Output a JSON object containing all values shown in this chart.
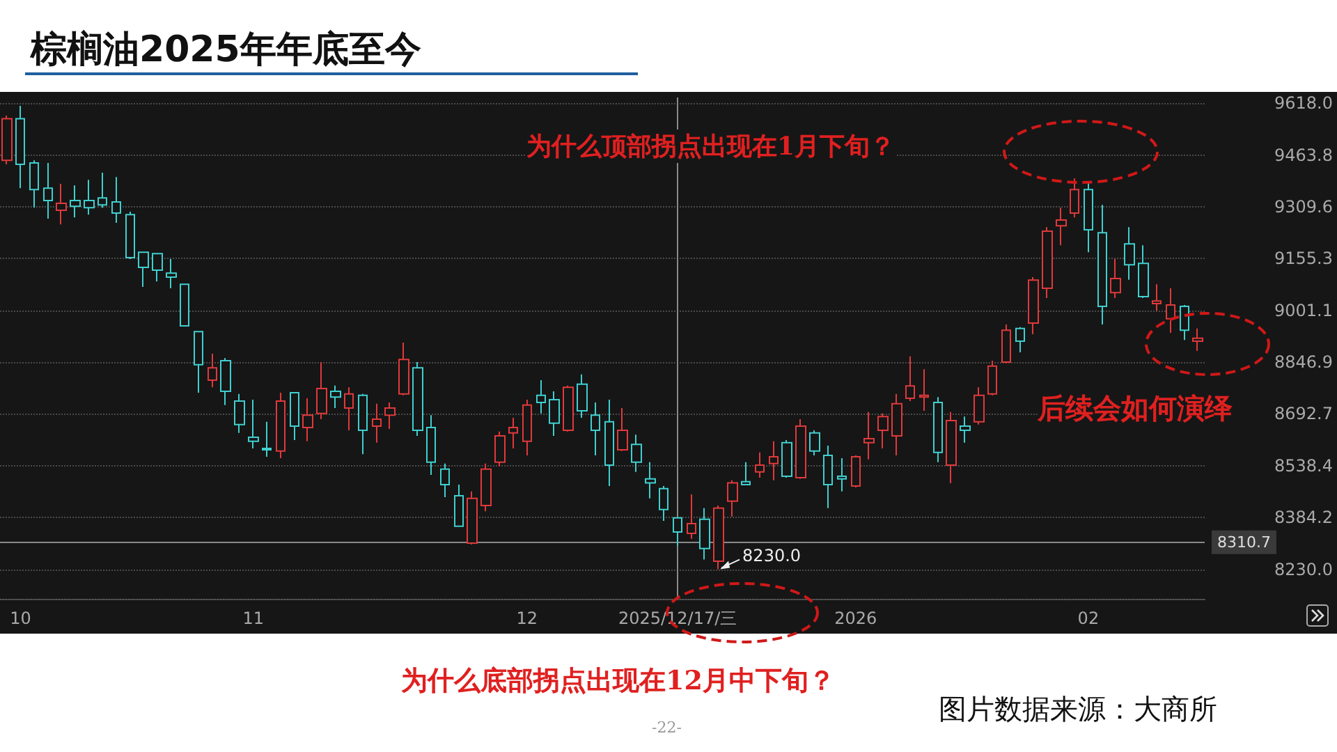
{
  "chart_data": {
    "type": "candlestick",
    "title": "棕榈油2025年年底至今",
    "categories": [
      null,
      "10",
      null,
      null,
      null,
      null,
      null,
      null,
      null,
      null,
      null,
      null,
      null,
      null,
      null,
      null,
      null,
      null,
      "11",
      null,
      null,
      null,
      null,
      null,
      null,
      null,
      null,
      null,
      null,
      null,
      null,
      null,
      null,
      null,
      null,
      null,
      null,
      null,
      "12",
      null,
      null,
      null,
      null,
      null,
      null,
      null,
      null,
      null,
      null,
      "2025/12/17/三",
      null,
      null,
      null,
      null,
      null,
      null,
      null,
      null,
      null,
      null,
      null,
      null,
      "2026",
      null,
      null,
      null,
      null,
      null,
      null,
      null,
      null,
      null,
      null,
      null,
      null,
      null,
      null,
      null,
      null,
      "02",
      null,
      null,
      null,
      null,
      null,
      null,
      null,
      null
    ],
    "ohlc": [
      [
        9448,
        9581,
        9436,
        9572
      ],
      [
        9572,
        9610,
        9365,
        9436
      ],
      [
        9440,
        9448,
        9307,
        9361
      ],
      [
        9365,
        9440,
        9274,
        9328
      ],
      [
        9299,
        9378,
        9257,
        9320
      ],
      [
        9328,
        9373,
        9278,
        9311
      ],
      [
        9328,
        9390,
        9286,
        9307
      ],
      [
        9336,
        9411,
        9307,
        9315
      ],
      [
        9324,
        9398,
        9262,
        9291
      ],
      [
        9286,
        9295,
        9154,
        9158
      ],
      [
        9174,
        9174,
        9071,
        9129
      ],
      [
        9170,
        9170,
        9087,
        9121
      ],
      [
        9112,
        9154,
        9067,
        9100
      ],
      [
        9079,
        9079,
        8955,
        8955
      ],
      [
        8938,
        8938,
        8756,
        8839
      ],
      [
        8793,
        8872,
        8772,
        8830
      ],
      [
        8851,
        8859,
        8719,
        8760
      ],
      [
        8731,
        8752,
        8636,
        8661
      ],
      [
        8623,
        8735,
        8590,
        8611
      ],
      [
        8590,
        8669,
        8565,
        8586
      ],
      [
        8582,
        8756,
        8561,
        8731
      ],
      [
        8756,
        8756,
        8615,
        8656
      ],
      [
        8652,
        8739,
        8611,
        8689
      ],
      [
        8694,
        8847,
        8677,
        8768
      ],
      [
        8760,
        8777,
        8710,
        8743
      ],
      [
        8710,
        8772,
        8644,
        8752
      ],
      [
        8748,
        8752,
        8573,
        8644
      ],
      [
        8656,
        8723,
        8607,
        8677
      ],
      [
        8689,
        8727,
        8648,
        8710
      ],
      [
        8752,
        8905,
        8748,
        8855
      ],
      [
        8830,
        8847,
        8627,
        8644
      ],
      [
        8652,
        8689,
        8511,
        8549
      ],
      [
        8528,
        8545,
        8445,
        8482
      ],
      [
        8449,
        8482,
        8358,
        8358
      ],
      [
        8308,
        8462,
        8304,
        8441
      ],
      [
        8420,
        8545,
        8403,
        8528
      ],
      [
        8549,
        8640,
        8536,
        8627
      ],
      [
        8636,
        8681,
        8590,
        8652
      ],
      [
        8611,
        8735,
        8569,
        8719
      ],
      [
        8748,
        8793,
        8694,
        8727
      ],
      [
        8735,
        8760,
        8627,
        8665
      ],
      [
        8644,
        8777,
        8640,
        8772
      ],
      [
        8781,
        8810,
        8681,
        8702
      ],
      [
        8689,
        8727,
        8569,
        8644
      ],
      [
        8669,
        8735,
        8478,
        8540
      ],
      [
        8586,
        8710,
        8582,
        8644
      ],
      [
        8602,
        8631,
        8520,
        8549
      ],
      [
        8499,
        8549,
        8441,
        8487
      ],
      [
        8470,
        8478,
        8374,
        8408
      ],
      [
        8383,
        8383,
        8300,
        8341
      ],
      [
        8337,
        8453,
        8321,
        8366
      ],
      [
        8379,
        8412,
        8259,
        8292
      ],
      [
        8254,
        8420,
        8230,
        8412
      ],
      [
        8433,
        8495,
        8387,
        8487
      ],
      [
        8491,
        8549,
        8482,
        8482
      ],
      [
        8520,
        8578,
        8503,
        8540
      ],
      [
        8545,
        8611,
        8495,
        8565
      ],
      [
        8607,
        8615,
        8503,
        8507
      ],
      [
        8503,
        8677,
        8499,
        8656
      ],
      [
        8636,
        8644,
        8569,
        8582
      ],
      [
        8569,
        8598,
        8412,
        8482
      ],
      [
        8507,
        8561,
        8462,
        8499
      ],
      [
        8478,
        8569,
        8474,
        8565
      ],
      [
        8607,
        8698,
        8557,
        8619
      ],
      [
        8644,
        8694,
        8590,
        8685
      ],
      [
        8627,
        8752,
        8569,
        8723
      ],
      [
        8739,
        8864,
        8731,
        8776
      ],
      [
        8743,
        8826,
        8702,
        8748
      ],
      [
        8727,
        8743,
        8549,
        8578
      ],
      [
        8540,
        8698,
        8486,
        8673
      ],
      [
        8656,
        8685,
        8607,
        8644
      ],
      [
        8669,
        8772,
        8661,
        8748
      ],
      [
        8752,
        8851,
        8748,
        8835
      ],
      [
        8847,
        8959,
        8843,
        8942
      ],
      [
        8947,
        8951,
        8876,
        8909
      ],
      [
        8963,
        9100,
        8930,
        9091
      ],
      [
        9067,
        9249,
        9038,
        9237
      ],
      [
        9253,
        9307,
        9195,
        9270
      ],
      [
        9291,
        9394,
        9278,
        9361
      ],
      [
        9361,
        9382,
        9174,
        9241
      ],
      [
        9232,
        9315,
        8959,
        9013
      ],
      [
        9054,
        9154,
        9038,
        9096
      ],
      [
        9199,
        9249,
        9092,
        9137
      ],
      [
        9141,
        9195,
        9038,
        9042
      ],
      [
        9021,
        9079,
        9000,
        9029
      ],
      [
        8976,
        9067,
        8934,
        9017
      ],
      [
        9013,
        9017,
        8913,
        8942
      ],
      [
        8909,
        8947,
        8880,
        8918
      ]
    ],
    "colors": [
      "#e0393b",
      "#3fcfcf",
      "#3fcfcf",
      "#3fcfcf",
      "#e0393b",
      "#3fcfcf",
      "#3fcfcf",
      "#3fcfcf",
      "#3fcfcf",
      "#3fcfcf",
      "#3fcfcf",
      "#3fcfcf",
      "#3fcfcf",
      "#3fcfcf",
      "#3fcfcf",
      "#e0393b",
      "#3fcfcf",
      "#3fcfcf",
      "#3fcfcf",
      "#3fcfcf",
      "#e0393b",
      "#3fcfcf",
      "#e0393b",
      "#e0393b",
      "#3fcfcf",
      "#e0393b",
      "#3fcfcf",
      "#e0393b",
      "#e0393b",
      "#e0393b",
      "#3fcfcf",
      "#3fcfcf",
      "#3fcfcf",
      "#3fcfcf",
      "#e0393b",
      "#e0393b",
      "#e0393b",
      "#e0393b",
      "#e0393b",
      "#3fcfcf",
      "#3fcfcf",
      "#e0393b",
      "#3fcfcf",
      "#3fcfcf",
      "#3fcfcf",
      "#e0393b",
      "#3fcfcf",
      "#3fcfcf",
      "#3fcfcf",
      "#3fcfcf",
      "#e0393b",
      "#3fcfcf",
      "#e0393b",
      "#e0393b",
      "#3fcfcf",
      "#e0393b",
      "#e0393b",
      "#3fcfcf",
      "#e0393b",
      "#3fcfcf",
      "#3fcfcf",
      "#3fcfcf",
      "#e0393b",
      "#e0393b",
      "#e0393b",
      "#e0393b",
      "#e0393b",
      "#e0393b",
      "#3fcfcf",
      "#e0393b",
      "#3fcfcf",
      "#e0393b",
      "#e0393b",
      "#e0393b",
      "#3fcfcf",
      "#e0393b",
      "#e0393b",
      "#e0393b",
      "#e0393b",
      "#3fcfcf",
      "#3fcfcf",
      "#e0393b",
      "#3fcfcf",
      "#3fcfcf",
      "#e0393b",
      "#e0393b",
      "#3fcfcf",
      "#e0393b"
    ],
    "ylim": [
      8142,
      9635
    ],
    "yticks": [
      {
        "value": 8230.0,
        "label": "8230.0"
      },
      {
        "value": 8384.2,
        "label": "8384.2"
      },
      {
        "value": 8538.4,
        "label": "8538.4"
      },
      {
        "value": 8692.7,
        "label": "8692.7"
      },
      {
        "value": 8846.9,
        "label": "8846.9"
      },
      {
        "value": 9001.1,
        "label": "9001.1"
      },
      {
        "value": 9155.3,
        "label": "9155.3"
      },
      {
        "value": 9309.6,
        "label": "9309.6"
      },
      {
        "value": 9463.8,
        "label": "9463.8"
      },
      {
        "value": 9618.0,
        "label": "9618.0"
      }
    ],
    "grid": "y",
    "ref_lines": [
      {
        "axis": "y",
        "value": 8310.7,
        "label": "8310.7"
      },
      {
        "axis": "x",
        "value": "2025/12/17/三"
      }
    ],
    "annotations": [
      "为什么顶部拐点出现在1月下旬？",
      "后续会如何演绎",
      "为什么底部拐点出现在12月中下旬？",
      "图片数据来源：大商所",
      "-22-",
      "8230.0"
    ]
  }
}
